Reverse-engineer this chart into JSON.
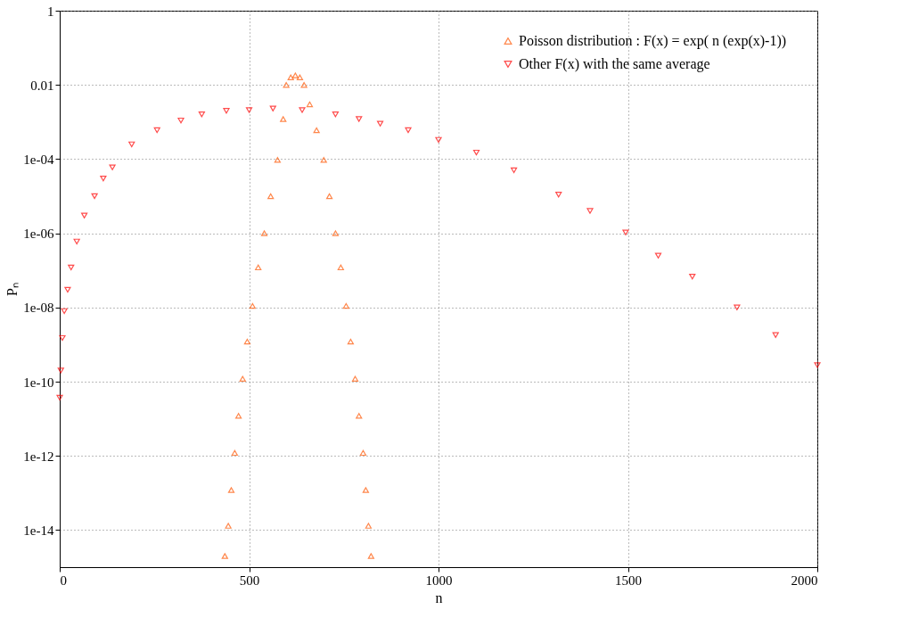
{
  "chart_data": {
    "type": "scatter",
    "xlabel": "n",
    "ylabel": "Pₙ",
    "log": "y",
    "grid": true,
    "legend": "top right",
    "xlim": [
      0,
      2000
    ],
    "xticks": [
      0,
      500,
      1000,
      1500,
      2000
    ],
    "ylim": [
      1e-15,
      1
    ],
    "yticks": [
      1,
      0.01,
      {
        "value": 0.0001,
        "label": "1e-04"
      },
      {
        "value": 1e-06,
        "label": "1e-06"
      },
      {
        "value": 1e-08,
        "label": "1e-08"
      },
      {
        "value": 1e-10,
        "label": "1e-10"
      },
      {
        "value": 1e-12,
        "label": "1e-12"
      },
      {
        "value": 1e-14,
        "label": "1e-14"
      }
    ],
    "series": [
      {
        "name": "Poisson distribution :   F(x) = exp( n (exp(x)-1))",
        "color": "#ff5500",
        "marker": "triangle",
        "x": [
          436,
          445,
          453,
          462,
          472,
          483,
          495,
          509,
          524,
          540,
          557,
          575,
          590,
          598,
          610,
          622,
          634,
          645,
          660,
          678,
          697,
          712,
          728,
          742,
          756,
          768,
          780,
          790,
          801,
          808,
          815,
          822
        ],
        "values": [
          2e-15,
          1.3e-14,
          1.2e-13,
          1.2e-12,
          1.2e-11,
          1.2e-10,
          1.2e-09,
          1.1e-08,
          1.2e-07,
          1e-06,
          1e-05,
          9.5e-05,
          0.0012,
          0.01,
          0.016,
          0.018,
          0.016,
          0.01,
          0.003,
          0.0006,
          9.5e-05,
          1e-05,
          1e-06,
          1.2e-07,
          1.1e-08,
          1.2e-09,
          1.2e-10,
          1.2e-11,
          1.2e-12,
          1.2e-13,
          1.3e-14,
          2e-15
        ]
      },
      {
        "name": "Other F(x) with the same average",
        "color": "#ff0000",
        "marker": "triangle-down",
        "x": [
          0,
          3,
          7,
          12,
          21,
          30,
          45,
          65,
          92,
          115,
          139,
          190,
          257,
          320,
          375,
          440,
          500,
          563,
          640,
          728,
          790,
          846,
          920,
          1000,
          1100,
          1199,
          1317,
          1400,
          1494,
          1580,
          1670,
          1788,
          1890,
          2000
        ],
        "values": [
          3.7e-11,
          2e-10,
          1.5e-09,
          8e-09,
          3e-08,
          1.2e-07,
          6e-07,
          3e-06,
          1e-05,
          3e-05,
          6e-05,
          0.00025,
          0.0006,
          0.0011,
          0.0016,
          0.002,
          0.0021,
          0.0023,
          0.0021,
          0.0016,
          0.0012,
          0.0009,
          0.0006,
          0.00033,
          0.00015,
          5e-05,
          1.1e-05,
          4e-06,
          1.05e-06,
          2.5e-07,
          6.8e-08,
          1e-08,
          1.8e-09,
          2.8e-10
        ]
      }
    ]
  }
}
